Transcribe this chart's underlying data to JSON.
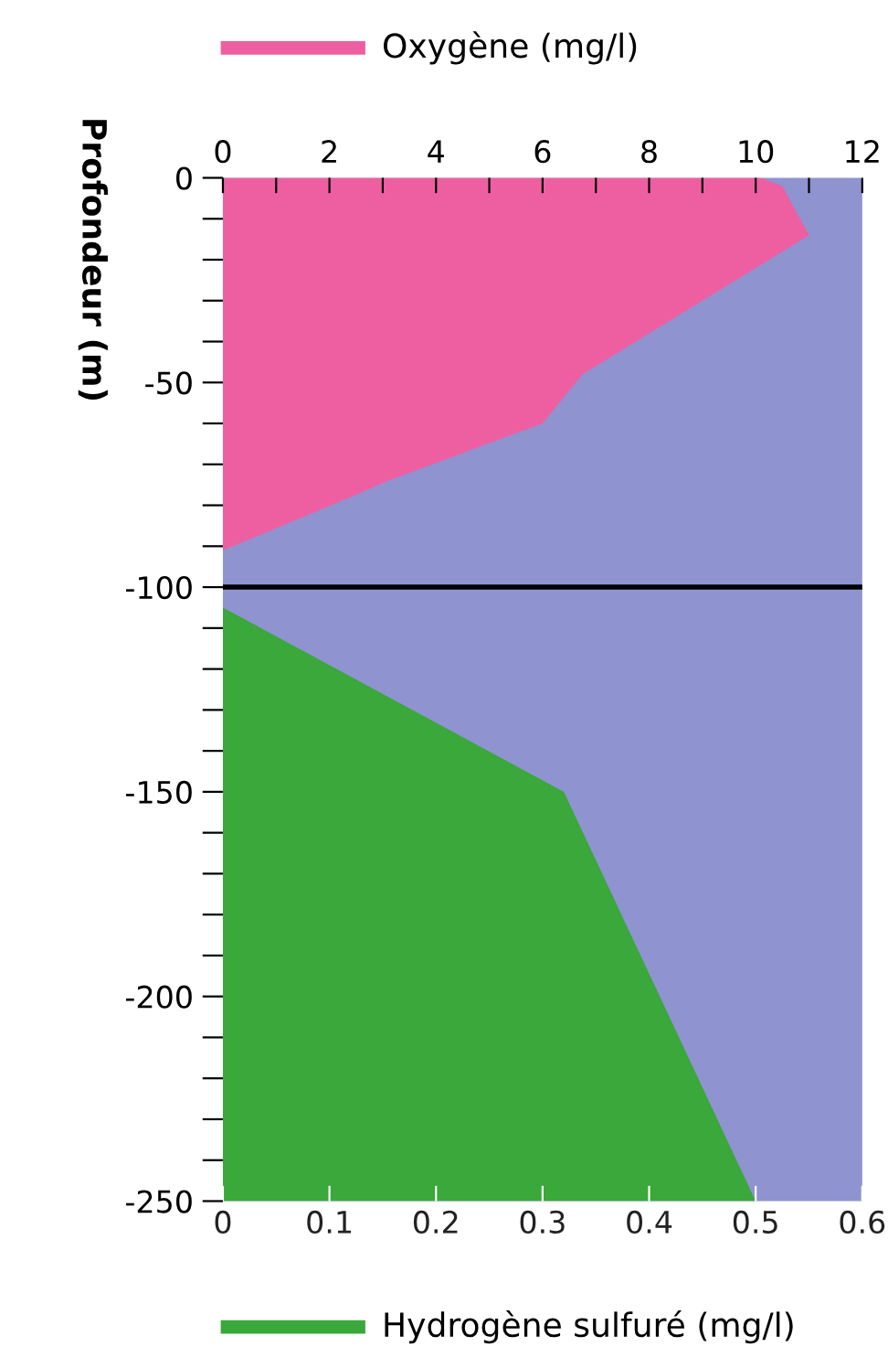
{
  "chart_data": {
    "type": "area",
    "ylabel": "Profondeur (m)",
    "series": [
      {
        "color": "#ee5fa2",
        "axis": "x2",
        "x": [
          10.1,
          10.5,
          11.0,
          6.75,
          6.0,
          3.1,
          2.4,
          0
        ],
        "values": [
          0,
          -2,
          -14,
          -48,
          -60,
          -74,
          -78,
          -91
        ]
      },
      {
        "color": "#3aa83a",
        "x": [
          0,
          0.32,
          0.5,
          0
        ],
        "values": [
          -105,
          -150,
          -250,
          -250
        ]
      }
    ],
    "xlim": [
      0,
      0.6
    ],
    "xticks": [
      0,
      0.1,
      0.2,
      0.3,
      0.4,
      0.5,
      0.6
    ],
    "x2lim": [
      0,
      12
    ],
    "x2ticks": [
      0,
      {
        "value": 1,
        "label": null
      },
      2,
      {
        "value": 3,
        "label": null
      },
      4,
      {
        "value": 5,
        "label": null
      },
      6,
      {
        "value": 7,
        "label": null
      },
      8,
      {
        "value": 9,
        "label": null
      },
      10,
      {
        "value": 11,
        "label": null
      },
      12
    ],
    "ylim": [
      -250,
      0
    ],
    "yticks": [
      {
        "value": -250,
        "label": "-250"
      },
      {
        "value": -240,
        "label": null
      },
      {
        "value": -230,
        "label": null
      },
      {
        "value": -220,
        "label": null
      },
      {
        "value": -210,
        "label": null
      },
      {
        "value": -200,
        "label": "-200"
      },
      {
        "value": -190,
        "label": null
      },
      {
        "value": -180,
        "label": null
      },
      {
        "value": -170,
        "label": null
      },
      {
        "value": -160,
        "label": null
      },
      {
        "value": -150,
        "label": "-150"
      },
      {
        "value": -140,
        "label": null
      },
      {
        "value": -130,
        "label": null
      },
      {
        "value": -120,
        "label": null
      },
      {
        "value": -110,
        "label": null
      },
      {
        "value": -100,
        "label": "-100"
      },
      {
        "value": -90,
        "label": null
      },
      {
        "value": -80,
        "label": null
      },
      {
        "value": -70,
        "label": null
      },
      {
        "value": -60,
        "label": null
      },
      {
        "value": -50,
        "label": "-50"
      },
      {
        "value": -40,
        "label": null
      },
      {
        "value": -30,
        "label": null
      },
      {
        "value": -20,
        "label": null
      },
      {
        "value": -10,
        "label": null
      },
      0
    ],
    "ref_lines": [
      {
        "axis": "y",
        "value": -100,
        "color": "#000000"
      }
    ],
    "x2label": "Oxygène (mg/l)",
    "xlabel": "Hydrogène sulfuré (mg/l)",
    "grid": false
  }
}
